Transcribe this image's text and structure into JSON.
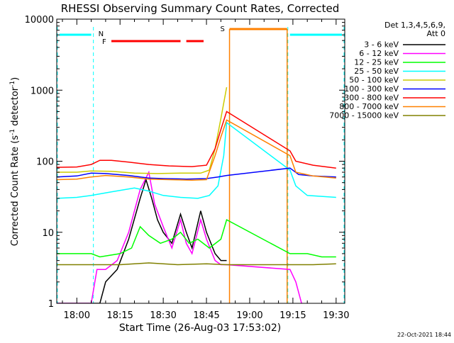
{
  "chart_data": {
    "type": "line",
    "title": "RHESSI Observing Summary Count Rates, Corrected",
    "xlabel": "Start Time (26-Aug-03 17:53:02)",
    "ylabel_main": "Corrected Count Rate (s",
    "ylabel_sup1": "-1",
    "ylabel_mid": " detector",
    "ylabel_sup2": "-1",
    "ylabel_end": ")",
    "y_scale": "log",
    "ylim": [
      1,
      10000
    ],
    "xlim": [
      "17:53:02",
      "19:33"
    ],
    "x_ticks": [
      "18:00",
      "18:15",
      "18:30",
      "18:45",
      "19:00",
      "19:15",
      "19:30"
    ],
    "y_ticks": [
      "1",
      "10",
      "100",
      "1000",
      "10000"
    ],
    "legend_header": [
      "Det 1,3,4,5,6,9,",
      "Att 0"
    ],
    "legend_position": "right",
    "timestamp": "22-Oct-2021 18:44",
    "annotations": {
      "night_label": "N",
      "flare_label": "F",
      "saa_label": "S"
    },
    "intervals": {
      "night": [
        [
          "17:53",
          "18:06"
        ],
        [
          "19:13",
          "19:33"
        ]
      ],
      "flare": [
        [
          "18:12",
          "18:36"
        ],
        [
          "18:38",
          "18:44"
        ]
      ],
      "saa": [
        [
          "18:53",
          "19:13"
        ]
      ]
    },
    "data_gaps": [
      [
        "18:53",
        "19:13"
      ]
    ],
    "series": [
      {
        "name": "3 - 6 keV",
        "color": "#000000",
        "points": [
          [
            "17:53",
            1
          ],
          [
            "18:08",
            1
          ],
          [
            "18:10",
            2
          ],
          [
            "18:14",
            3
          ],
          [
            "18:18",
            8
          ],
          [
            "18:22",
            30
          ],
          [
            "18:24",
            55
          ],
          [
            "18:26",
            30
          ],
          [
            "18:28",
            15
          ],
          [
            "18:30",
            10
          ],
          [
            "18:33",
            7
          ],
          [
            "18:36",
            18
          ],
          [
            "18:38",
            10
          ],
          [
            "18:40",
            6
          ],
          [
            "18:43",
            20
          ],
          [
            "18:45",
            10
          ],
          [
            "18:48",
            5
          ],
          [
            "18:50",
            4
          ],
          [
            "18:52",
            4
          ]
        ]
      },
      {
        "name": "6 - 12 keV",
        "color": "#ff00ff",
        "points": [
          [
            "17:53",
            1
          ],
          [
            "18:05",
            1
          ],
          [
            "18:07",
            3
          ],
          [
            "18:10",
            3
          ],
          [
            "18:14",
            4
          ],
          [
            "18:18",
            10
          ],
          [
            "18:22",
            40
          ],
          [
            "18:25",
            70
          ],
          [
            "18:27",
            25
          ],
          [
            "18:30",
            12
          ],
          [
            "18:33",
            6
          ],
          [
            "18:36",
            15
          ],
          [
            "18:38",
            7
          ],
          [
            "18:40",
            5
          ],
          [
            "18:43",
            15
          ],
          [
            "18:45",
            8
          ],
          [
            "18:48",
            4
          ],
          [
            "18:50",
            3.5
          ],
          [
            "18:52",
            3.5
          ],
          [
            "19:14",
            3
          ],
          [
            "19:16",
            2
          ],
          [
            "19:18",
            1
          ]
        ]
      },
      {
        "name": "12 - 25 keV",
        "color": "#00ff00",
        "points": [
          [
            "17:53",
            5
          ],
          [
            "18:05",
            5
          ],
          [
            "18:08",
            4.5
          ],
          [
            "18:15",
            5
          ],
          [
            "18:19",
            6
          ],
          [
            "18:22",
            12
          ],
          [
            "18:25",
            9
          ],
          [
            "18:29",
            7
          ],
          [
            "18:33",
            8
          ],
          [
            "18:36",
            10
          ],
          [
            "18:39",
            7
          ],
          [
            "18:42",
            8
          ],
          [
            "18:46",
            6
          ],
          [
            "18:50",
            8
          ],
          [
            "18:52",
            15
          ],
          [
            "19:14",
            5
          ],
          [
            "19:20",
            5
          ],
          [
            "19:25",
            4.5
          ],
          [
            "19:30",
            4.5
          ]
        ]
      },
      {
        "name": "25 - 50 keV",
        "color": "#00ffff",
        "points": [
          [
            "17:53",
            30
          ],
          [
            "18:00",
            31
          ],
          [
            "18:05",
            33
          ],
          [
            "18:12",
            37
          ],
          [
            "18:20",
            42
          ],
          [
            "18:25",
            38
          ],
          [
            "18:30",
            33
          ],
          [
            "18:36",
            31
          ],
          [
            "18:42",
            30
          ],
          [
            "18:46",
            33
          ],
          [
            "18:49",
            45
          ],
          [
            "18:51",
            120
          ],
          [
            "18:52",
            350
          ],
          [
            "19:14",
            75
          ],
          [
            "19:16",
            45
          ],
          [
            "19:20",
            33
          ],
          [
            "19:30",
            31
          ]
        ]
      },
      {
        "name": "50 - 100 keV",
        "color": "#cccc00",
        "points": [
          [
            "17:53",
            70
          ],
          [
            "18:00",
            70
          ],
          [
            "18:05",
            73
          ],
          [
            "18:12",
            72
          ],
          [
            "18:20",
            68
          ],
          [
            "18:28",
            67
          ],
          [
            "18:36",
            68
          ],
          [
            "18:43",
            68
          ],
          [
            "18:46",
            75
          ],
          [
            "18:48",
            150
          ],
          [
            "18:50",
            400
          ],
          [
            "18:52",
            1100
          ]
        ]
      },
      {
        "name": "100 - 300 keV",
        "color": "#0000ff",
        "points": [
          [
            "17:53",
            60
          ],
          [
            "18:00",
            62
          ],
          [
            "18:05",
            68
          ],
          [
            "18:10",
            67
          ],
          [
            "18:18",
            63
          ],
          [
            "18:25",
            58
          ],
          [
            "18:30",
            57
          ],
          [
            "18:38",
            56
          ],
          [
            "18:45",
            57
          ],
          [
            "18:49",
            60
          ],
          [
            "18:52",
            63
          ],
          [
            "19:14",
            80
          ],
          [
            "19:17",
            65
          ],
          [
            "19:22",
            62
          ],
          [
            "19:30",
            60
          ]
        ]
      },
      {
        "name": "300 - 800 keV",
        "color": "#ff0000",
        "points": [
          [
            "17:53",
            82
          ],
          [
            "18:00",
            83
          ],
          [
            "18:05",
            90
          ],
          [
            "18:08",
            103
          ],
          [
            "18:12",
            103
          ],
          [
            "18:18",
            97
          ],
          [
            "18:25",
            90
          ],
          [
            "18:32",
            86
          ],
          [
            "18:40",
            84
          ],
          [
            "18:45",
            88
          ],
          [
            "18:48",
            150
          ],
          [
            "18:50",
            280
          ],
          [
            "18:52",
            500
          ],
          [
            "19:14",
            140
          ],
          [
            "19:16",
            100
          ],
          [
            "19:22",
            88
          ],
          [
            "19:30",
            80
          ]
        ]
      },
      {
        "name": "800 - 7000 keV",
        "color": "#ff8000",
        "points": [
          [
            "17:53",
            55
          ],
          [
            "18:00",
            56
          ],
          [
            "18:05",
            60
          ],
          [
            "18:10",
            63
          ],
          [
            "18:18",
            60
          ],
          [
            "18:25",
            56
          ],
          [
            "18:32",
            55
          ],
          [
            "18:40",
            54
          ],
          [
            "18:45",
            55
          ],
          [
            "18:48",
            120
          ],
          [
            "18:50",
            220
          ],
          [
            "18:52",
            380
          ],
          [
            "19:14",
            120
          ],
          [
            "19:16",
            70
          ],
          [
            "19:22",
            62
          ],
          [
            "19:30",
            58
          ]
        ]
      },
      {
        "name": "7000 - 15000 keV",
        "color": "#808000",
        "points": [
          [
            "17:53",
            3.5
          ],
          [
            "18:05",
            3.5
          ],
          [
            "18:15",
            3.5
          ],
          [
            "18:25",
            3.7
          ],
          [
            "18:35",
            3.5
          ],
          [
            "18:45",
            3.6
          ],
          [
            "18:52",
            3.5
          ],
          [
            "19:14",
            3.5
          ],
          [
            "19:22",
            3.5
          ],
          [
            "19:30",
            3.6
          ]
        ]
      }
    ]
  }
}
